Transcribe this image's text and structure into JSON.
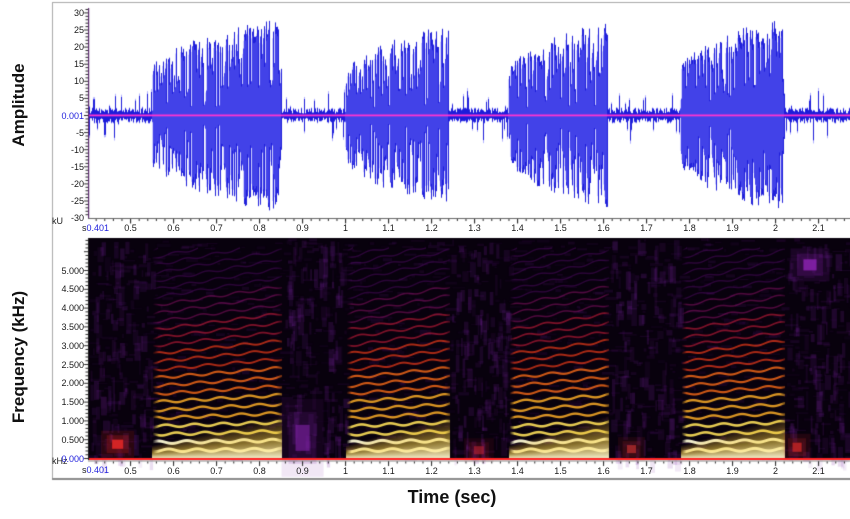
{
  "labels": {
    "amplitude_axis": "Amplitude",
    "frequency_axis": "Frequency (kHz)",
    "time_axis": "Time (sec)",
    "time_unit_prefix": "s",
    "time_start": "0.401"
  },
  "colors": {
    "waveform_blue": "#1414d8",
    "waveform_light_blue": "#8080ff",
    "zero_line_magenta": "#ff35d0",
    "axis_value_blue": "#2323dd",
    "spectrogram_baseline_red": "#ff2222",
    "spectrogram_background": "#08010d",
    "waveform_axis_line": "#5b2a6e",
    "frame_border": "#a8a8a8"
  },
  "chart_data": [
    {
      "type": "line",
      "panel": "oscillogram",
      "ylabel": "Amplitude",
      "y_unit": "kU",
      "x_unit": "s",
      "x_start_label": "0.401",
      "x_range_sec": [
        0.401,
        2.18
      ],
      "y_range": [
        -32,
        32
      ],
      "zero_level_label": "0.001",
      "y_major_ticks": [
        {
          "label": "30",
          "value": 30
        },
        {
          "label": "25",
          "value": 25
        },
        {
          "label": "20",
          "value": 20
        },
        {
          "label": "15",
          "value": 15
        },
        {
          "label": "10",
          "value": 10
        },
        {
          "label": "5",
          "value": 5
        },
        {
          "label": "0.001",
          "value": 0,
          "blue": true
        },
        {
          "label": "-5",
          "value": -5
        },
        {
          "label": "-10",
          "value": -10
        },
        {
          "label": "-15",
          "value": -15
        },
        {
          "label": "-20",
          "value": -20
        },
        {
          "label": "-25",
          "value": -25
        },
        {
          "label": "-30",
          "value": -30
        }
      ],
      "x_ticks": [
        {
          "label": "0.5",
          "value": 0.5
        },
        {
          "label": "0.6",
          "value": 0.6
        },
        {
          "label": "0.7",
          "value": 0.7
        },
        {
          "label": "0.8",
          "value": 0.8
        },
        {
          "label": "0.9",
          "value": 0.9
        },
        {
          "label": "1",
          "value": 1.0
        },
        {
          "label": "1.1",
          "value": 1.1
        },
        {
          "label": "1.2",
          "value": 1.2
        },
        {
          "label": "1.3",
          "value": 1.3
        },
        {
          "label": "1.4",
          "value": 1.4
        },
        {
          "label": "1.5",
          "value": 1.5
        },
        {
          "label": "1.6",
          "value": 1.6
        },
        {
          "label": "1.7",
          "value": 1.7
        },
        {
          "label": "1.8",
          "value": 1.8
        },
        {
          "label": "1.9",
          "value": 1.9
        },
        {
          "label": "2",
          "value": 2.0
        },
        {
          "label": "2.1",
          "value": 2.1
        },
        {
          "label": "2.2",
          "value": 2.2
        }
      ],
      "noise_amplitude_units": 3,
      "bursts": [
        {
          "start_sec": 0.55,
          "end_sec": 0.85,
          "peak_amplitude": 28
        },
        {
          "start_sec": 1.0,
          "end_sec": 1.24,
          "peak_amplitude": 26
        },
        {
          "start_sec": 1.38,
          "end_sec": 1.61,
          "peak_amplitude": 27
        },
        {
          "start_sec": 1.78,
          "end_sec": 2.02,
          "peak_amplitude": 28
        }
      ]
    },
    {
      "type": "heatmap",
      "panel": "spectrogram",
      "ylabel": "Frequency (kHz)",
      "y_unit": "kHz",
      "x_unit": "s",
      "x_start_label": "0.401",
      "x_range_sec": [
        0.401,
        2.18
      ],
      "f_range_khz": [
        0,
        5.85
      ],
      "y_major_ticks": [
        {
          "label": "5.000",
          "value": 5.0
        },
        {
          "label": "4.500",
          "value": 4.5
        },
        {
          "label": "4.000",
          "value": 4.0
        },
        {
          "label": "3.500",
          "value": 3.5
        },
        {
          "label": "3.000",
          "value": 3.0
        },
        {
          "label": "2.500",
          "value": 2.5
        },
        {
          "label": "2.000",
          "value": 2.0
        },
        {
          "label": "1.500",
          "value": 1.5
        },
        {
          "label": "1.000",
          "value": 1.0
        },
        {
          "label": "0.500",
          "value": 0.5
        },
        {
          "label": "0.000",
          "value": 0.0,
          "blue": true
        }
      ],
      "x_ticks": [
        {
          "label": "0.5",
          "value": 0.5
        },
        {
          "label": "0.6",
          "value": 0.6
        },
        {
          "label": "0.7",
          "value": 0.7
        },
        {
          "label": "0.8",
          "value": 0.8
        },
        {
          "label": "0.9",
          "value": 0.9
        },
        {
          "label": "1",
          "value": 1.0
        },
        {
          "label": "1.1",
          "value": 1.1
        },
        {
          "label": "1.2",
          "value": 1.2
        },
        {
          "label": "1.3",
          "value": 1.3
        },
        {
          "label": "1.4",
          "value": 1.4
        },
        {
          "label": "1.5",
          "value": 1.5
        },
        {
          "label": "1.6",
          "value": 1.6
        },
        {
          "label": "1.7",
          "value": 1.7
        },
        {
          "label": "1.8",
          "value": 1.8
        },
        {
          "label": "1.9",
          "value": 1.9
        },
        {
          "label": "2",
          "value": 2.0
        },
        {
          "label": "2.1",
          "value": 2.1
        },
        {
          "label": "2.2",
          "value": 2.2
        }
      ],
      "fundamental_khz": 0.225,
      "harmonics_visible_to_khz": 5.6,
      "pitch_rise_fraction": 0.12,
      "background": "#08010d",
      "baseline_color": "#ff2222",
      "palette_low_to_high": [
        "#fffcd7",
        "#ffe15a",
        "#ffaf28",
        "#ff6e19",
        "#f03c19",
        "#cd1e3c",
        "#96146e",
        "#5f0f78"
      ],
      "bursts": [
        {
          "start_sec": 0.55,
          "end_sec": 0.85
        },
        {
          "start_sec": 1.0,
          "end_sec": 1.24
        },
        {
          "start_sec": 1.38,
          "end_sec": 1.61
        },
        {
          "start_sec": 1.78,
          "end_sec": 2.02
        }
      ],
      "interburst_marks": [
        {
          "t_sec": 0.47,
          "f_khz": 0.38,
          "color": "#e62828",
          "alpha": 0.75,
          "w": 11,
          "h": 9
        },
        {
          "t_sec": 0.9,
          "f_khz": 0.55,
          "color": "#7a1fa0",
          "alpha": 0.5,
          "w": 14,
          "h": 26
        },
        {
          "t_sec": 1.31,
          "f_khz": 0.22,
          "color": "#b02030",
          "alpha": 0.5,
          "w": 10,
          "h": 8
        },
        {
          "t_sec": 1.665,
          "f_khz": 0.25,
          "color": "#c03030",
          "alpha": 0.55,
          "w": 9,
          "h": 8
        },
        {
          "t_sec": 2.05,
          "f_khz": 0.3,
          "color": "#d02828",
          "alpha": 0.6,
          "w": 9,
          "h": 9
        },
        {
          "t_sec": 2.08,
          "f_khz": 5.15,
          "color": "#8a22b0",
          "alpha": 0.7,
          "w": 13,
          "h": 11
        }
      ]
    }
  ]
}
